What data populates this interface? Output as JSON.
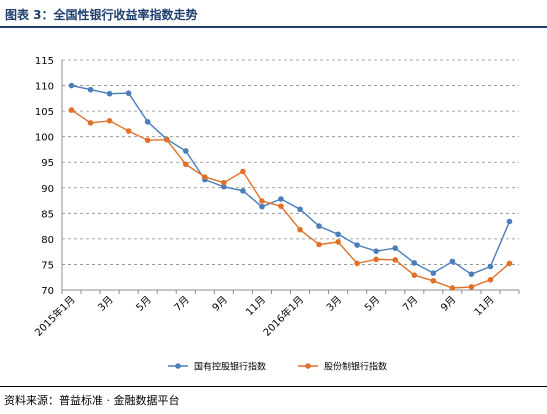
{
  "figure_title": "图表 3：全国性银行收益率指数走势",
  "source_text": "资料来源：普益标准 · 金融数据平台",
  "chart_data": {
    "type": "line",
    "title": "",
    "xlabel": "",
    "ylabel": "",
    "ylim": [
      70,
      115
    ],
    "yticks": [
      70,
      75,
      80,
      85,
      90,
      95,
      100,
      105,
      110,
      115
    ],
    "grid": true,
    "legend_position": "bottom",
    "x_tick_labels": [
      "2015年1月",
      "3月",
      "5月",
      "7月",
      "9月",
      "11月",
      "2016年1月",
      "3月",
      "5月",
      "7月",
      "9月",
      "11月"
    ],
    "x_tick_every": 2,
    "colors": {
      "series1": "#4a7ebb",
      "series2": "#e0712a",
      "grid": "#8c8c8c",
      "axis": "#8c8c8c"
    },
    "series": [
      {
        "name": "国有控股银行指数",
        "values": [
          110.0,
          109.2,
          108.4,
          108.5,
          102.9,
          99.5,
          97.2,
          91.6,
          90.2,
          89.4,
          86.3,
          87.8,
          85.8,
          82.5,
          80.9,
          78.8,
          77.6,
          78.2,
          75.3,
          73.3,
          75.6,
          73.1,
          74.6,
          83.4
        ]
      },
      {
        "name": "股份制银行指数",
        "values": [
          105.2,
          102.7,
          103.1,
          101.1,
          99.3,
          99.4,
          94.6,
          92.1,
          91.0,
          93.2,
          87.4,
          86.4,
          81.8,
          78.9,
          79.4,
          75.2,
          76.0,
          75.9,
          72.9,
          71.8,
          70.4,
          70.6,
          72.0,
          75.2
        ]
      }
    ]
  }
}
